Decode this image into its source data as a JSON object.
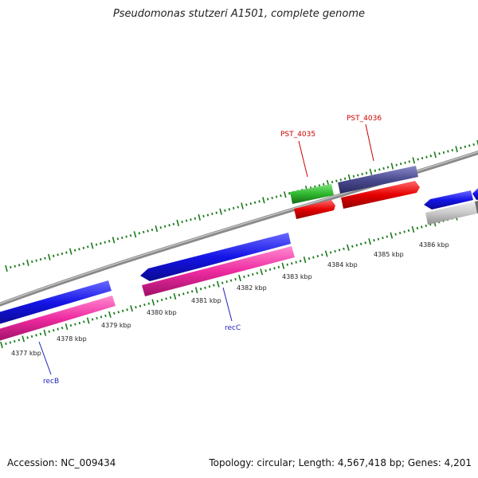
{
  "header": {
    "title": "Pseudomonas stutzeri A1501, complete genome"
  },
  "footer": {
    "accession": "Accession: NC_009434",
    "summary": "Topology: circular; Length: 4,567,418 bp; Genes: 4,201"
  },
  "map": {
    "unit": "kbp",
    "tick_labels": [
      "4377 kbp",
      "4378 kbp",
      "4379 kbp",
      "4380 kbp",
      "4381 kbp",
      "4382 kbp",
      "4383 kbp",
      "4384 kbp",
      "4385 kbp",
      "4386 kbp"
    ],
    "gene_labels": [
      {
        "name": "recB",
        "color": "#1f1fbf"
      },
      {
        "name": "recC",
        "color": "#1f1fbf"
      },
      {
        "name": "PST_4035",
        "color": "#cc0000"
      },
      {
        "name": "PST_4036",
        "color": "#cc0000"
      }
    ],
    "colors": {
      "backbone": "#8a8a8a",
      "tick": "#1a7a1a",
      "cds_forward": "#1414e6",
      "cds_blue_feature": "#ee2aa0",
      "gene_green": "#2db82d",
      "gene_red": "#e60000",
      "gene_purple": "#4a4a90",
      "gene_gray": "#c8c8c8"
    }
  }
}
